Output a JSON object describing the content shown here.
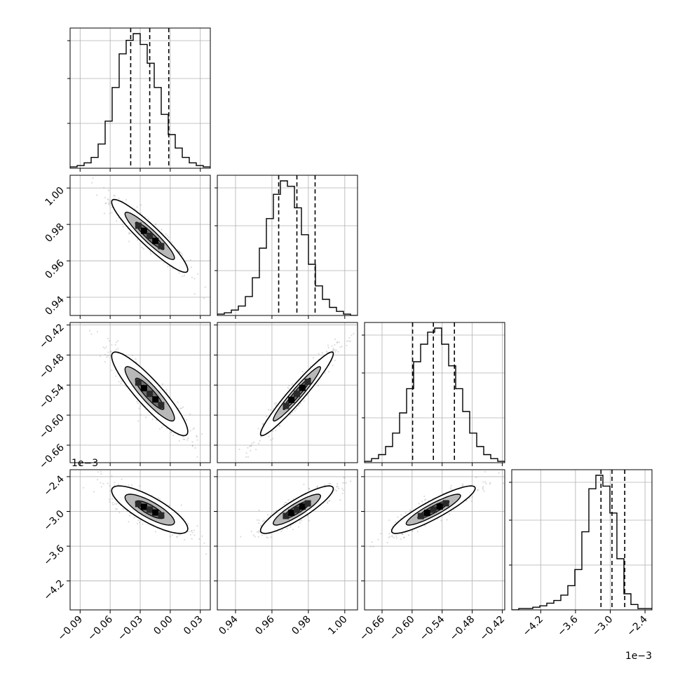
{
  "chart_data": {
    "type": "corner",
    "grid": true,
    "parameters": [
      {
        "ticks": [
          "−0.09",
          "−0.06",
          "−0.03",
          "0.00",
          "0.03"
        ],
        "tick_values": [
          -0.09,
          -0.06,
          -0.03,
          0.0,
          0.03
        ],
        "range": [
          -0.1,
          0.04
        ],
        "quantiles": [
          -0.0395,
          -0.0205,
          -0.0015
        ]
      },
      {
        "ticks": [
          "0.94",
          "0.96",
          "0.98",
          "1.00"
        ],
        "tick_values": [
          0.94,
          0.96,
          0.98,
          1.0
        ],
        "range": [
          0.93,
          1.007
        ],
        "quantiles": [
          0.9637,
          0.9737,
          0.9837
        ]
      },
      {
        "ticks": [
          "−0.66",
          "−0.60",
          "−0.54",
          "−0.48",
          "−0.42"
        ],
        "tick_values": [
          -0.66,
          -0.6,
          -0.54,
          -0.48,
          -0.42
        ],
        "range": [
          -0.695,
          -0.415
        ],
        "quantiles": [
          -0.599,
          -0.5575,
          -0.5155
        ]
      },
      {
        "ticks": [
          "−4.2",
          "−3.6",
          "−3.0",
          "−2.4"
        ],
        "tick_values": [
          -4.2,
          -3.6,
          -3.0,
          -2.4
        ],
        "range": [
          -4.7,
          -2.28
        ],
        "quantiles": [
          -3.16,
          -2.97,
          -2.75
        ],
        "offset_label": "1e−3"
      }
    ],
    "histograms": [
      [
        1,
        2,
        4,
        8,
        18,
        35,
        60,
        85,
        95,
        100,
        92,
        78,
        60,
        40,
        25,
        15,
        8,
        4,
        2,
        1
      ],
      [
        1,
        2,
        4,
        7,
        14,
        28,
        50,
        72,
        90,
        100,
        96,
        80,
        60,
        38,
        22,
        12,
        6,
        3,
        1,
        0
      ],
      [
        1,
        3,
        6,
        12,
        22,
        37,
        55,
        75,
        88,
        97,
        100,
        88,
        72,
        55,
        38,
        22,
        12,
        6,
        3,
        1
      ],
      [
        0,
        1,
        1,
        2,
        3,
        5,
        7,
        11,
        18,
        30,
        58,
        90,
        100,
        92,
        72,
        38,
        12,
        4,
        1,
        1
      ]
    ]
  }
}
